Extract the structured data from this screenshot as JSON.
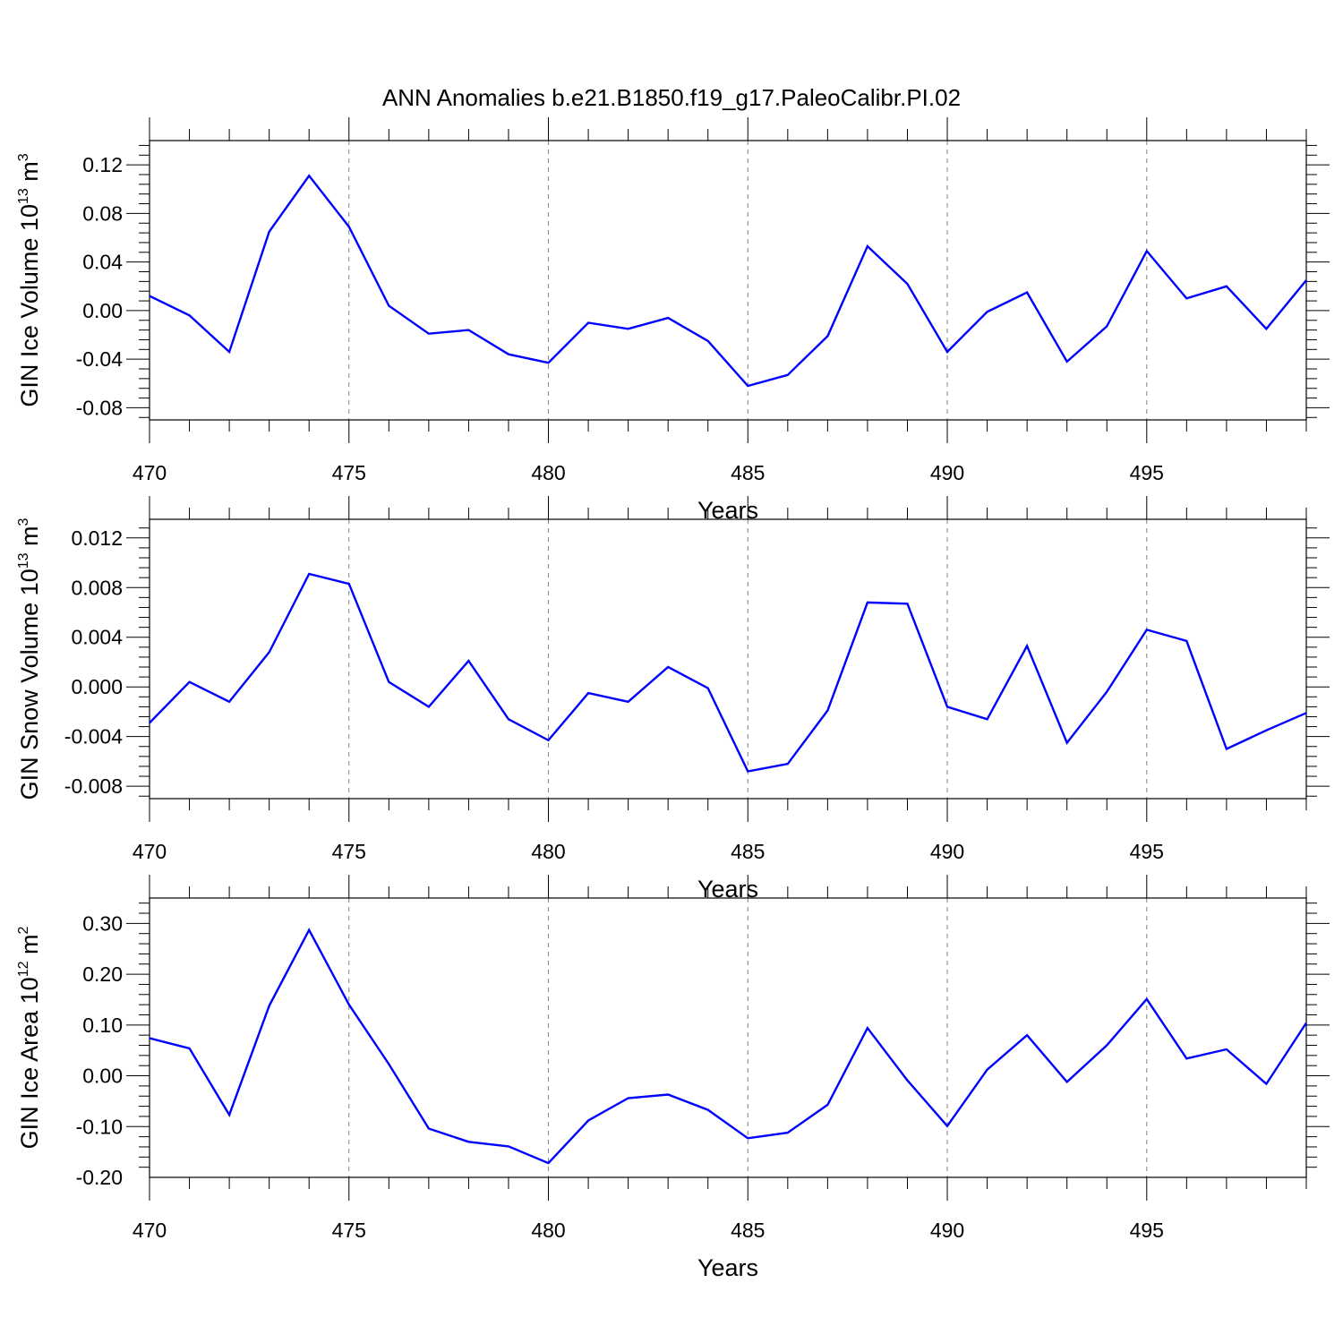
{
  "chart_data": {
    "title": "ANN Anomalies b.e21.B1850.f19_g17.PaleoCalibr.PI.02",
    "line_color": "#0000ff",
    "grid_style": "dashed vertical lines at major x ticks",
    "panels": [
      {
        "type": "line",
        "ylabel_main": "GIN Ice Volume 10",
        "ylabel_exp": "13",
        "ylabel_unit": " m",
        "ylabel_unit_exp": "3",
        "xlabel": "Years",
        "xlim": [
          470,
          499
        ],
        "ylim": [
          -0.09,
          0.14
        ],
        "yticks": [
          -0.08,
          -0.04,
          0.0,
          0.04,
          0.08,
          0.12
        ],
        "ytick_labels": [
          "-0.08",
          "-0.04",
          "0.00",
          "0.04",
          "0.08",
          "0.12"
        ],
        "xticks": [
          470,
          475,
          480,
          485,
          490,
          495
        ],
        "xtick_labels": [
          "470",
          "475",
          "480",
          "485",
          "490",
          "495"
        ],
        "x": [
          470,
          471,
          472,
          473,
          474,
          475,
          476,
          477,
          478,
          479,
          480,
          481,
          482,
          483,
          484,
          485,
          486,
          487,
          488,
          489,
          490,
          491,
          492,
          493,
          494,
          495,
          496,
          497,
          498,
          499
        ],
        "y": [
          0.012,
          -0.004,
          -0.034,
          0.065,
          0.111,
          0.069,
          0.004,
          -0.019,
          -0.016,
          -0.036,
          -0.043,
          -0.01,
          -0.015,
          -0.006,
          -0.025,
          -0.062,
          -0.053,
          -0.021,
          0.053,
          0.022,
          -0.034,
          -0.001,
          0.015,
          -0.042,
          -0.013,
          0.049,
          0.01,
          0.02,
          -0.015,
          0.025
        ]
      },
      {
        "type": "line",
        "ylabel_main": "GIN Snow Volume 10",
        "ylabel_exp": "13",
        "ylabel_unit": " m",
        "ylabel_unit_exp": "3",
        "xlabel": "Years",
        "xlim": [
          470,
          499
        ],
        "ylim": [
          -0.009,
          0.0135
        ],
        "yticks": [
          -0.008,
          -0.004,
          0.0,
          0.004,
          0.008,
          0.012
        ],
        "ytick_labels": [
          "-0.008",
          "-0.004",
          "0.000",
          "0.004",
          "0.008",
          "0.012"
        ],
        "xticks": [
          470,
          475,
          480,
          485,
          490,
          495
        ],
        "xtick_labels": [
          "470",
          "475",
          "480",
          "485",
          "490",
          "495"
        ],
        "x": [
          470,
          471,
          472,
          473,
          474,
          475,
          476,
          477,
          478,
          479,
          480,
          481,
          482,
          483,
          484,
          485,
          486,
          487,
          488,
          489,
          490,
          491,
          492,
          493,
          494,
          495,
          496,
          497,
          498,
          499
        ],
        "y": [
          -0.0029,
          0.0004,
          -0.0012,
          0.0028,
          0.0091,
          0.0083,
          0.0004,
          -0.0016,
          0.0021,
          -0.0026,
          -0.0043,
          -0.0005,
          -0.0012,
          0.0016,
          -0.0001,
          -0.0068,
          -0.0062,
          -0.0019,
          0.0068,
          0.0067,
          -0.0016,
          -0.0026,
          0.0033,
          -0.0045,
          -0.0004,
          0.0046,
          0.0037,
          -0.005,
          -0.0035,
          -0.0021
        ]
      },
      {
        "type": "line",
        "ylabel_main": "GIN Ice Area 10",
        "ylabel_exp": "12",
        "ylabel_unit": " m",
        "ylabel_unit_exp": "2",
        "xlabel": "Years",
        "xlim": [
          470,
          499
        ],
        "ylim": [
          -0.2,
          0.35
        ],
        "yticks": [
          -0.2,
          -0.1,
          0.0,
          0.1,
          0.2,
          0.3
        ],
        "ytick_labels": [
          "-0.20",
          "-0.10",
          "0.00",
          "0.10",
          "0.20",
          "0.30"
        ],
        "xticks": [
          470,
          475,
          480,
          485,
          490,
          495
        ],
        "xtick_labels": [
          "470",
          "475",
          "480",
          "485",
          "490",
          "495"
        ],
        "x": [
          470,
          471,
          472,
          473,
          474,
          475,
          476,
          477,
          478,
          479,
          480,
          481,
          482,
          483,
          484,
          485,
          486,
          487,
          488,
          489,
          490,
          491,
          492,
          493,
          494,
          495,
          496,
          497,
          498,
          499
        ],
        "y": [
          0.074,
          0.054,
          -0.077,
          0.138,
          0.287,
          0.14,
          0.023,
          -0.104,
          -0.13,
          -0.139,
          -0.172,
          -0.088,
          -0.044,
          -0.037,
          -0.067,
          -0.123,
          -0.112,
          -0.057,
          0.094,
          -0.009,
          -0.099,
          0.012,
          0.08,
          -0.012,
          0.06,
          0.151,
          0.034,
          0.052,
          -0.016,
          0.104
        ]
      }
    ]
  }
}
